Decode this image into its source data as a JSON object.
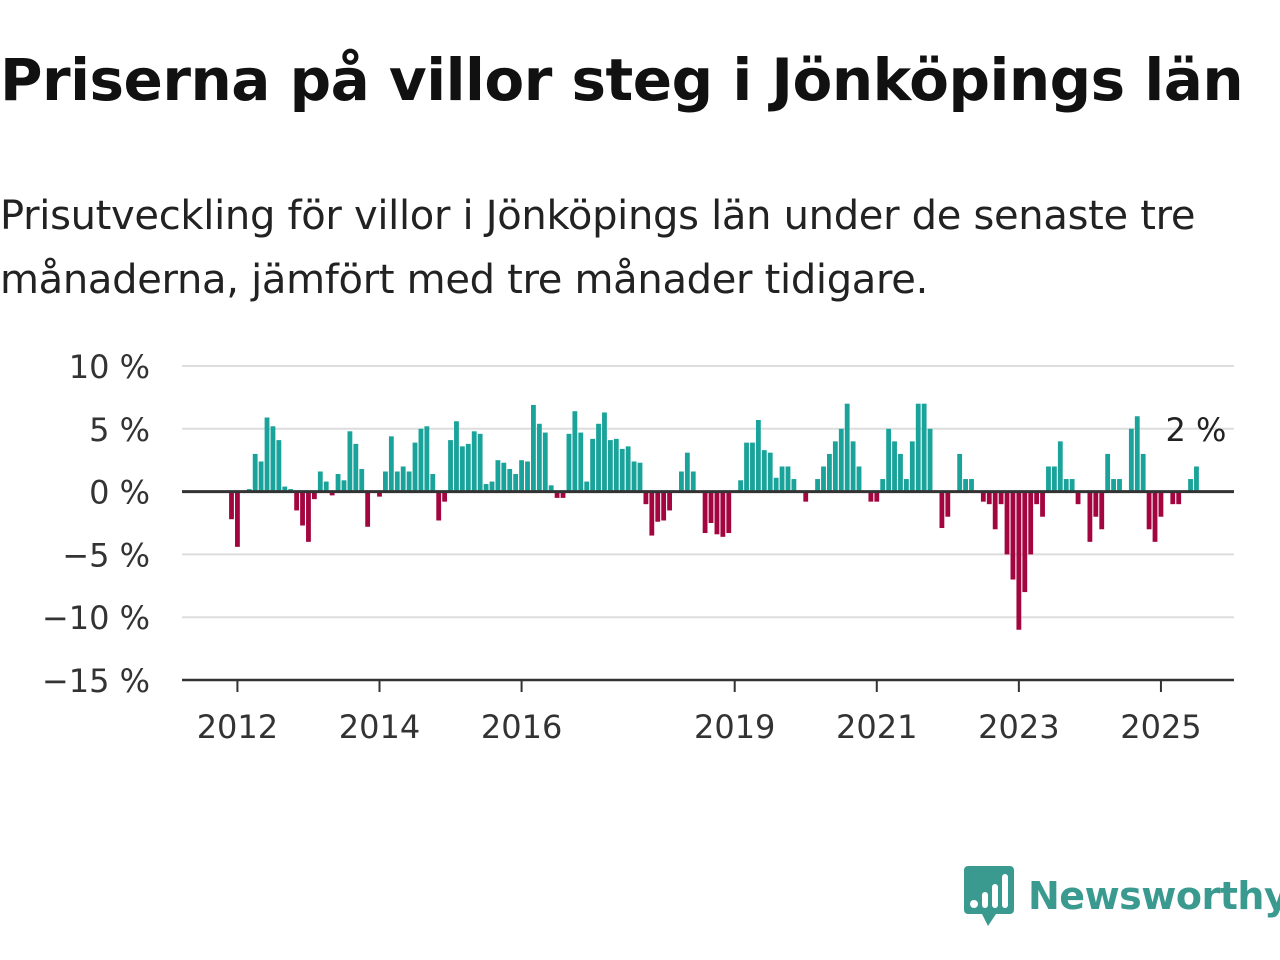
{
  "title": "Priserna på villor steg i Jönköpings län",
  "subtitle": "Prisutveckling för villor i Jönköpings län under de senaste tre månaderna, jämfört med tre månader tidigare.",
  "brand": "Newsworthy",
  "colors": {
    "positive": "#1aa39a",
    "negative": "#a3063f",
    "brand": "#3a9a90",
    "grid": "#dddddd",
    "axis": "#333333"
  },
  "chart_data": {
    "type": "bar",
    "ylim": [
      -15,
      10
    ],
    "yticks": [
      10,
      5,
      0,
      -5,
      -10,
      -15
    ],
    "ytick_labels": [
      "10 %",
      "5 %",
      "0 %",
      "−5 %",
      "−10 %",
      "−15 %"
    ],
    "xticks": [
      "2012",
      "2014",
      "2016",
      "2019",
      "2021",
      "2023",
      "2025"
    ],
    "grid": true,
    "last_value_label": "2 %",
    "start_month": "2011-12",
    "values": [
      -2.2,
      -4.4,
      0,
      0.2,
      3,
      2.4,
      5.9,
      5.2,
      4.1,
      0.4,
      0.2,
      -1.5,
      -2.7,
      -4,
      -0.6,
      1.6,
      0.8,
      -0.3,
      1.4,
      0.9,
      4.8,
      3.8,
      1.8,
      -2.8,
      0,
      -0.4,
      1.6,
      4.4,
      1.6,
      2,
      1.6,
      3.9,
      5,
      5.2,
      1.4,
      -2.3,
      -0.8,
      4.1,
      5.6,
      3.6,
      3.8,
      4.8,
      4.6,
      0.6,
      0.8,
      2.5,
      2.3,
      1.8,
      1.4,
      2.5,
      2.4,
      6.9,
      5.4,
      4.7,
      0.5,
      -0.5,
      -0.5,
      4.6,
      6.4,
      4.7,
      0.8,
      4.2,
      5.4,
      6.3,
      4.1,
      4.2,
      3.4,
      3.6,
      2.4,
      2.3,
      -1,
      -3.5,
      -2.4,
      -2.3,
      -1.5,
      0,
      1.6,
      3.1,
      1.6,
      0,
      -3.3,
      -2.5,
      -3.4,
      -3.6,
      -3.3,
      0,
      0.9,
      3.9,
      3.9,
      5.7,
      3.3,
      3.1,
      1.1,
      2,
      2,
      1,
      0,
      -0.8,
      0,
      1,
      2,
      3,
      4,
      5,
      7,
      4,
      2,
      0,
      -0.8,
      -0.8,
      1,
      5,
      4,
      3,
      1,
      4,
      7,
      7,
      5,
      0,
      -2.9,
      -2,
      0,
      3,
      1,
      1,
      0,
      -0.8,
      -1,
      -3,
      -1,
      -5,
      -7,
      -11,
      -8,
      -5,
      -1,
      -2,
      2,
      2,
      4,
      1,
      1,
      -1,
      0,
      -4,
      -2,
      -3,
      3,
      1,
      1,
      0,
      5,
      6,
      3,
      -3,
      -4,
      -2,
      0,
      -1,
      -1,
      0,
      1,
      2
    ]
  }
}
